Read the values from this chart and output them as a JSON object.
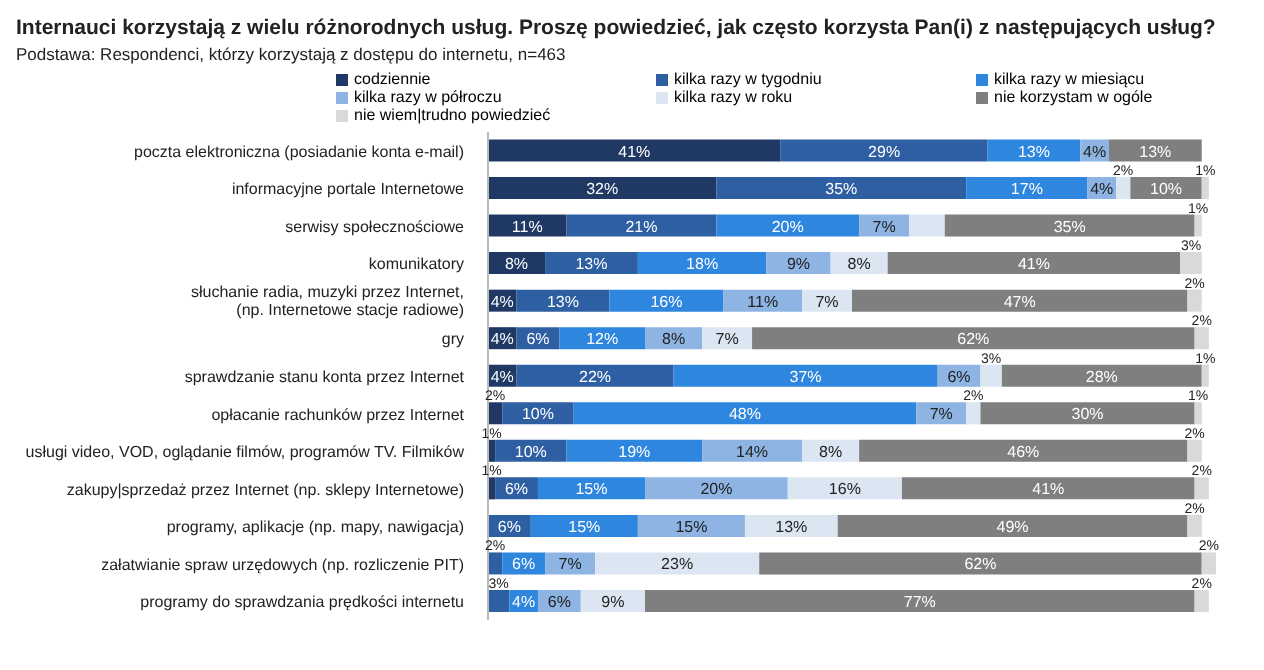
{
  "chart_data": {
    "type": "bar",
    "orientation": "horizontal",
    "stacked": true,
    "title": "Internauci korzystają z wielu różnorodnych usług. Proszę powiedzieć, jak często korzysta Pan(i) z następujących usług?",
    "subtitle": "Podstawa: Respondenci, którzy korzystają z dostępu do internetu, n=463",
    "legend": "top",
    "categories": [
      "poczta elektroniczna (posiadanie konta e-mail)",
      "informacyjne portale Internetowe",
      "serwisy społecznościowe",
      "komunikatory",
      "słuchanie radia, muzyki przez Internet, (np. Internetowe stacje radiowe)",
      "gry",
      "sprawdzanie stanu konta przez Internet",
      "opłacanie rachunków przez Internet",
      "usługi video, VOD, oglądanie filmów, programów TV. Filmików",
      "zakupy|sprzedaż przez Internet (np. sklepy Internetowe)",
      "programy, aplikacje (np. mapy, nawigacja)",
      "załatwianie spraw urzędowych (np. rozliczenie PIT)",
      "programy do sprawdzania prędkości internetu"
    ],
    "series": [
      {
        "name": "codziennie",
        "color": "#1f3864",
        "values": [
          41,
          32,
          11,
          8,
          4,
          4,
          4,
          2,
          1,
          1,
          null,
          null,
          null
        ],
        "value_labels": [
          "41%",
          "32%",
          "11%",
          "8%",
          "4%",
          "4%",
          "4%",
          "2%",
          "1%",
          "1%",
          null,
          null,
          null
        ]
      },
      {
        "name": "kilka razy w tygodniu",
        "color": "#2e5fa3",
        "values": [
          29,
          35,
          21,
          13,
          13,
          6,
          22,
          10,
          10,
          6,
          6,
          2,
          3
        ],
        "value_labels": [
          "29%",
          "35%",
          "21%",
          "13%",
          "13%",
          "6%",
          "22%",
          "10%",
          "10%",
          "6%",
          "6%",
          "2%",
          "3%"
        ]
      },
      {
        "name": "kilka razy w miesiącu",
        "color": "#2e86de",
        "values": [
          13,
          17,
          20,
          18,
          16,
          12,
          37,
          48,
          19,
          15,
          15,
          6,
          4
        ],
        "value_labels": [
          "13%",
          "17%",
          "20%",
          "18%",
          "16%",
          "12%",
          "37%",
          "48%",
          "19%",
          "15%",
          "15%",
          "6%",
          "4%"
        ]
      },
      {
        "name": "kilka razy w półroczu",
        "color": "#8db4e2",
        "values": [
          4,
          4,
          7,
          9,
          11,
          8,
          6,
          7,
          14,
          20,
          15,
          7,
          6
        ],
        "value_labels": [
          "4%",
          "4%",
          "7%",
          "9%",
          "11%",
          "8%",
          "6%",
          "7%",
          "14%",
          "20%",
          "15%",
          "7%",
          "6%"
        ]
      },
      {
        "name": "kilka razy w roku",
        "color": "#dce6f2",
        "values": [
          null,
          2,
          5,
          8,
          7,
          7,
          3,
          2,
          8,
          16,
          13,
          23,
          9
        ],
        "value_labels": [
          null,
          "2%",
          null,
          "8%",
          "7%",
          "7%",
          "3%",
          "2%",
          "8%",
          "16%",
          "13%",
          "23%",
          "9%"
        ]
      },
      {
        "name": "nie korzystam w ogóle",
        "color": "#7f7f7f",
        "values": [
          13,
          10,
          35,
          41,
          47,
          62,
          28,
          30,
          46,
          41,
          49,
          62,
          77
        ],
        "value_labels": [
          "13%",
          "10%",
          "35%",
          "41%",
          "47%",
          "62%",
          "28%",
          "30%",
          "46%",
          "41%",
          "49%",
          "62%",
          "77%"
        ]
      },
      {
        "name": "nie wiem|trudno powiedzieć",
        "color": "#d9d9d9",
        "values": [
          null,
          1,
          1,
          3,
          2,
          2,
          1,
          1,
          2,
          2,
          2,
          2,
          2
        ],
        "value_labels": [
          null,
          "1%",
          "1%",
          "3%",
          "2%",
          "2%",
          "1%",
          "1%",
          "2%",
          "2%",
          "2%",
          "2%",
          "2%"
        ]
      }
    ]
  }
}
